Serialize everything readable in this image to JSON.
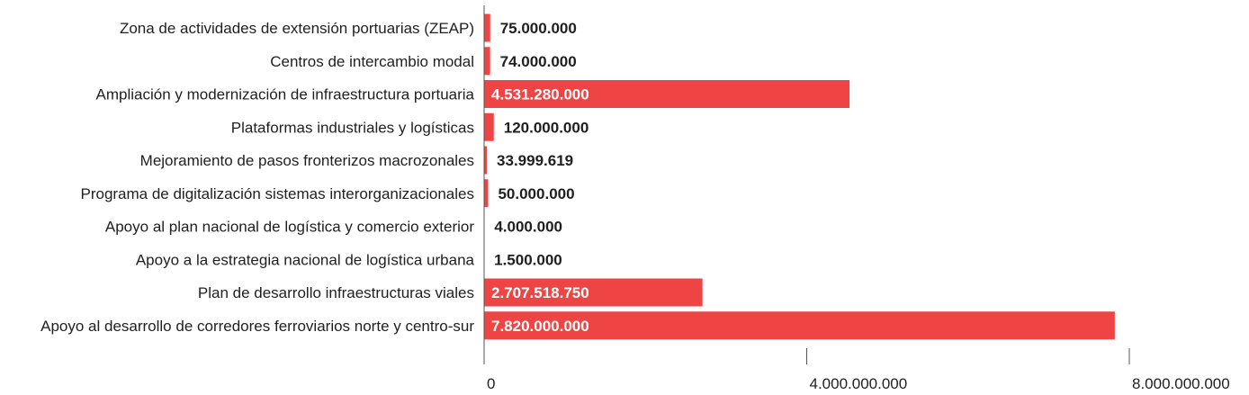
{
  "chart_data": {
    "type": "bar",
    "orientation": "horizontal",
    "title": "",
    "xlabel": "",
    "ylabel": "",
    "xlim": [
      0,
      8000000000
    ],
    "grid": false,
    "bar_color": "#ef4444",
    "inside_label_color": "#ffffff",
    "outside_label_color": "#1f1f1f",
    "axis_color": "#555555",
    "categories": [
      "Zona de actividades de extensión portuarias (ZEAP)",
      "Centros de intercambio modal",
      "Ampliación y modernización de infraestructura portuaria",
      "Plataformas industriales y logísticas",
      "Mejoramiento de pasos fronterizos macrozonales",
      "Programa de digitalización sistemas interorganizacionales",
      "Apoyo al plan nacional de logística y comercio exterior",
      "Apoyo a la estrategia nacional de logística urbana",
      "Plan de desarrollo infraestructuras viales",
      "Apoyo al desarrollo de corredores ferroviarios norte y centro-sur"
    ],
    "values": [
      75000000,
      74000000,
      4531280000,
      120000000,
      33999619,
      50000000,
      4000000,
      1500000,
      2707518750,
      7820000000
    ],
    "value_labels": [
      "75.000.000",
      "74.000.000",
      "4.531.280.000",
      "120.000.000",
      "33.999.619",
      "50.000.000",
      "4.000.000",
      "1.500.000",
      "2.707.518.750",
      "7.820.000.000"
    ],
    "ticks": [
      0,
      4000000000,
      8000000000
    ],
    "tick_labels": [
      "0",
      "4.000.000.000",
      "8.000.000.000"
    ]
  }
}
